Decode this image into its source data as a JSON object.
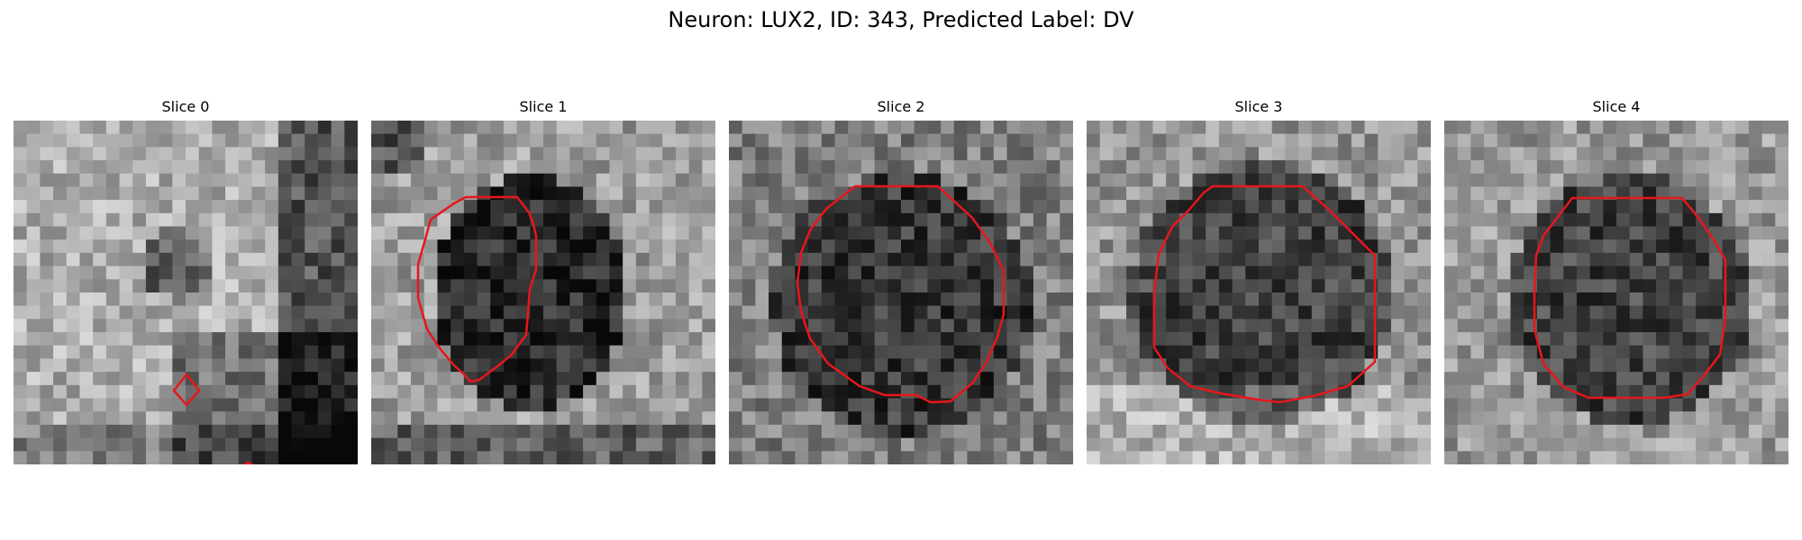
{
  "figure": {
    "title": "Neuron: LUX2, ID: 343, Predicted Label: DV"
  },
  "colors": {
    "background": "#ffffff",
    "contour": "#e8161b"
  },
  "colormap": "grayscale",
  "panels": [
    {
      "title": "Slice 0"
    },
    {
      "title": "Slice 1"
    },
    {
      "title": "Slice 2"
    },
    {
      "title": "Slice 3"
    },
    {
      "title": "Slice 4"
    }
  ]
}
